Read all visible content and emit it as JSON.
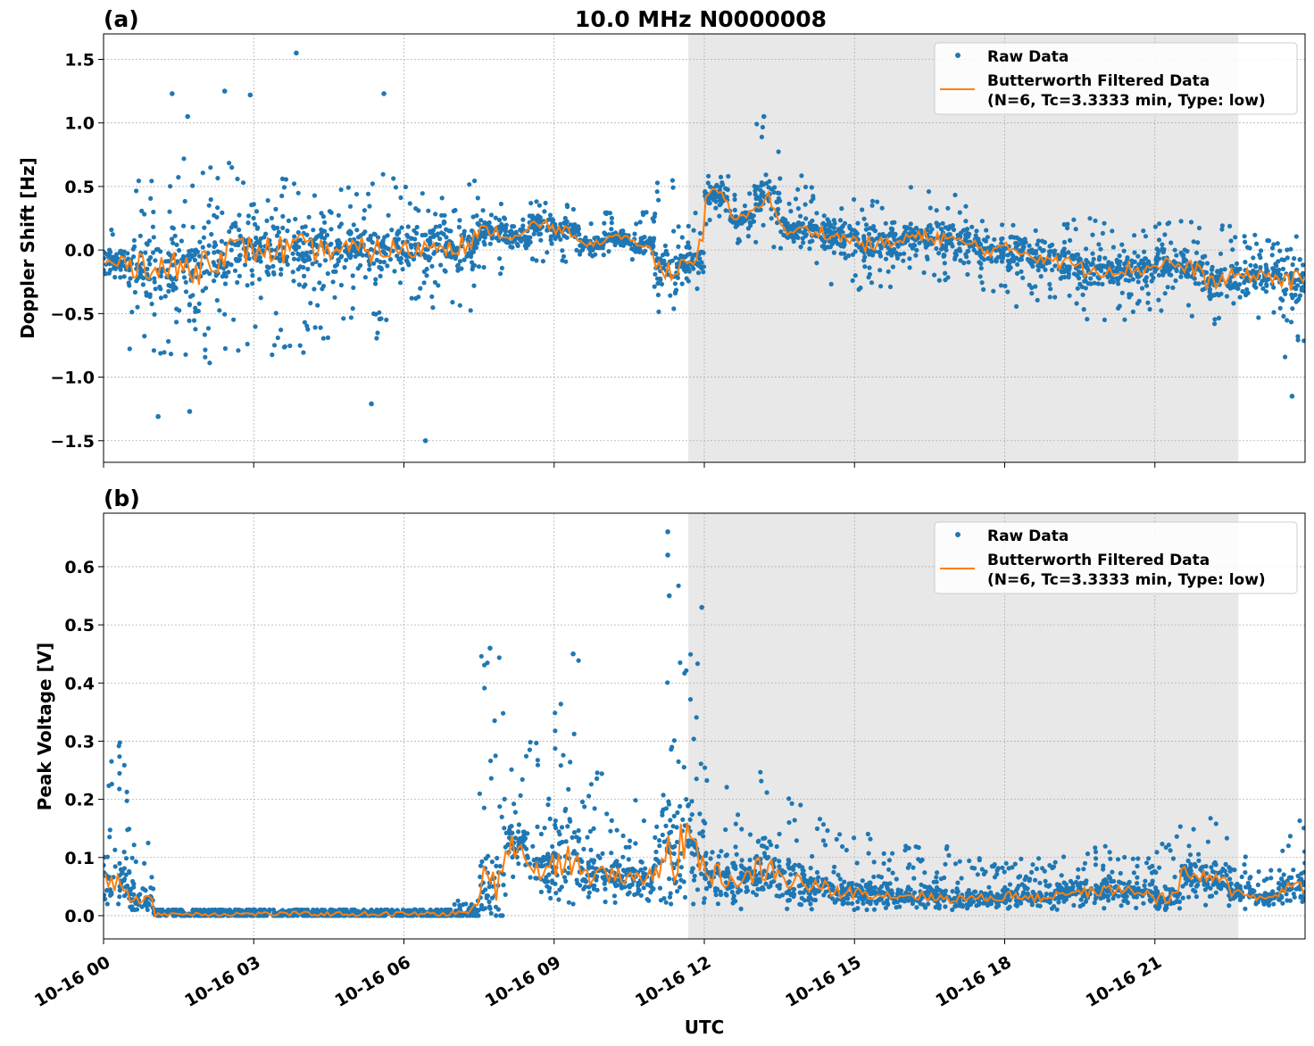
{
  "chart_data": [
    {
      "type": "scatter",
      "panel_label": "(a)",
      "title": "10.0 MHz N0000008",
      "xlabel": "",
      "ylabel": "Doppler Shift [Hz]",
      "xlim_hours": [
        0,
        24
      ],
      "ylim": [
        -1.67,
        1.7
      ],
      "yticks": [
        1.5,
        1.0,
        0.5,
        0.0,
        -0.5,
        -1.0,
        -1.5
      ],
      "ytick_labels": [
        "1.5",
        "1.0",
        "0.5",
        "0.0",
        "−0.5",
        "−1.0",
        "−1.5"
      ],
      "grid": true,
      "shaded_region_hours": [
        11.68,
        22.67
      ],
      "legend": {
        "placement": "top-right",
        "entries": [
          "Raw Data",
          "Butterworth Filtered Data",
          "(N=6, Tc=3.3333 min, Type: low)"
        ]
      },
      "bin_hours": 0.5,
      "filtered": [
        -0.1,
        -0.1,
        -0.15,
        -0.15,
        -0.05,
        0.0,
        0.0,
        0.0,
        0.0,
        0.0,
        0.0,
        0.0,
        0.0,
        0.05,
        0.05,
        0.15,
        0.1,
        0.2,
        0.15,
        0.05,
        0.1,
        0.05,
        -0.15,
        -0.1,
        0.45,
        0.25,
        0.4,
        0.15,
        0.15,
        0.1,
        0.05,
        0.05,
        0.1,
        0.1,
        0.05,
        0.0,
        0.0,
        -0.05,
        -0.1,
        -0.15,
        -0.15,
        -0.15,
        -0.1,
        -0.15,
        -0.25,
        -0.2,
        -0.2,
        -0.25
      ],
      "raw_low": [
        -0.4,
        -0.9,
        -1.0,
        -1.1,
        -0.9,
        -0.8,
        -0.9,
        -0.9,
        -0.7,
        -0.6,
        -0.7,
        -0.6,
        -0.5,
        -0.5,
        -0.5,
        -0.2,
        -0.05,
        -0.1,
        -0.1,
        -0.05,
        -0.05,
        -0.1,
        -0.5,
        -0.35,
        0.2,
        0.05,
        0.0,
        -0.1,
        -0.15,
        -0.3,
        -0.4,
        -0.3,
        -0.2,
        -0.25,
        -0.3,
        -0.35,
        -0.45,
        -0.4,
        -0.45,
        -0.55,
        -0.55,
        -0.5,
        -0.5,
        -0.55,
        -0.6,
        -0.5,
        -0.55,
        -0.9
      ],
      "raw_high": [
        0.2,
        0.6,
        0.7,
        0.8,
        0.7,
        0.7,
        0.6,
        0.7,
        0.5,
        0.5,
        0.6,
        0.6,
        0.5,
        0.6,
        0.6,
        0.4,
        0.35,
        0.4,
        0.4,
        0.25,
        0.3,
        0.3,
        0.6,
        0.3,
        0.65,
        0.45,
        1.0,
        0.6,
        0.5,
        0.4,
        0.4,
        0.35,
        0.5,
        0.45,
        0.45,
        0.3,
        0.3,
        0.3,
        0.3,
        0.25,
        0.2,
        0.2,
        0.3,
        0.3,
        0.2,
        0.15,
        0.2,
        0.25
      ],
      "outliers": [
        [
          1.09,
          -1.31
        ],
        [
          1.37,
          1.23
        ],
        [
          1.68,
          1.05
        ],
        [
          1.72,
          -1.27
        ],
        [
          2.42,
          1.25
        ],
        [
          2.93,
          1.22
        ],
        [
          3.85,
          1.55
        ],
        [
          5.35,
          -1.21
        ],
        [
          5.6,
          1.23
        ],
        [
          6.43,
          -1.5
        ],
        [
          13.19,
          1.05
        ],
        [
          23.74,
          -1.15
        ]
      ]
    },
    {
      "type": "scatter",
      "panel_label": "(b)",
      "title": "",
      "xlabel": "UTC",
      "ylabel": "Peak Voltage [V]",
      "xlim_hours": [
        0,
        24
      ],
      "ylim": [
        -0.04,
        0.692
      ],
      "yticks": [
        0.6,
        0.5,
        0.4,
        0.3,
        0.2,
        0.1,
        0.0
      ],
      "ytick_labels": [
        "0.6",
        "0.5",
        "0.4",
        "0.3",
        "0.2",
        "0.1",
        "0.0"
      ],
      "xticks_hours": [
        0,
        3,
        6,
        9,
        12,
        15,
        18,
        21
      ],
      "xtick_labels": [
        "10-16 00",
        "10-16 03",
        "10-16 06",
        "10-16 09",
        "10-16 12",
        "10-16 15",
        "10-16 18",
        "10-16 21"
      ],
      "grid": true,
      "shaded_region_hours": [
        11.68,
        22.67
      ],
      "legend": {
        "placement": "top-right",
        "entries": [
          "Raw Data",
          "Butterworth Filtered Data",
          "(N=6, Tc=3.3333 min, Type: low)"
        ]
      },
      "bin_hours": 0.5,
      "filtered": [
        0.06,
        0.03,
        0.003,
        0.003,
        0.003,
        0.003,
        0.003,
        0.003,
        0.003,
        0.003,
        0.003,
        0.003,
        0.003,
        0.003,
        0.005,
        0.05,
        0.12,
        0.08,
        0.1,
        0.07,
        0.07,
        0.06,
        0.1,
        0.12,
        0.07,
        0.06,
        0.08,
        0.06,
        0.05,
        0.04,
        0.04,
        0.035,
        0.035,
        0.03,
        0.03,
        0.03,
        0.035,
        0.03,
        0.04,
        0.04,
        0.045,
        0.04,
        0.03,
        0.07,
        0.06,
        0.04,
        0.03,
        0.05
      ],
      "raw_low": [
        0.02,
        0.01,
        0.0,
        0.0,
        0.0,
        0.0,
        0.0,
        0.0,
        0.0,
        0.0,
        0.0,
        0.0,
        0.0,
        0.0,
        0.0,
        0.0,
        0.02,
        0.02,
        0.02,
        0.02,
        0.02,
        0.02,
        0.02,
        0.02,
        0.01,
        0.01,
        0.01,
        0.01,
        0.01,
        0.01,
        0.01,
        0.01,
        0.01,
        0.01,
        0.01,
        0.01,
        0.01,
        0.01,
        0.01,
        0.01,
        0.01,
        0.01,
        0.01,
        0.01,
        0.01,
        0.01,
        0.01,
        0.01
      ],
      "raw_high": [
        0.3,
        0.15,
        0.01,
        0.01,
        0.01,
        0.01,
        0.01,
        0.01,
        0.01,
        0.01,
        0.01,
        0.01,
        0.01,
        0.01,
        0.03,
        0.45,
        0.28,
        0.3,
        0.44,
        0.25,
        0.18,
        0.2,
        0.6,
        0.52,
        0.26,
        0.2,
        0.31,
        0.23,
        0.17,
        0.14,
        0.15,
        0.12,
        0.13,
        0.12,
        0.1,
        0.1,
        0.11,
        0.1,
        0.11,
        0.12,
        0.12,
        0.1,
        0.14,
        0.19,
        0.18,
        0.11,
        0.08,
        0.17
      ],
      "outliers": [
        [
          11.27,
          0.66
        ],
        [
          11.27,
          0.62
        ],
        [
          11.3,
          0.55
        ],
        [
          11.95,
          0.53
        ],
        [
          9.38,
          0.45
        ],
        [
          7.72,
          0.46
        ]
      ]
    }
  ],
  "colors": {
    "raw": "#1f77b4",
    "filtered": "#ff7f0e",
    "shade": "#e8e8e8",
    "grid": "#b0b0b0"
  }
}
